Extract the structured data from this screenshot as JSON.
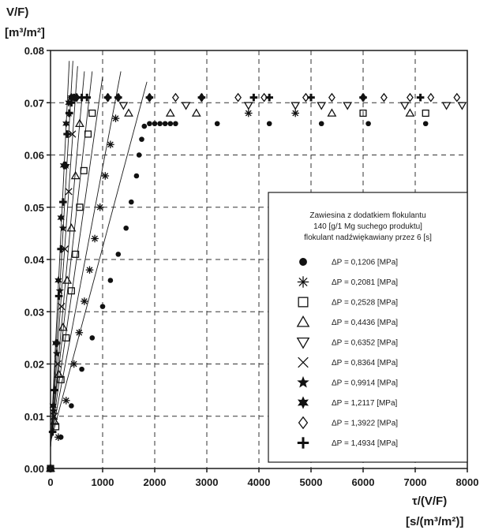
{
  "chart_data": {
    "type": "scatter",
    "ylabel_lines": [
      "V/F)",
      "[m³/m²]"
    ],
    "xlabel_lines": [
      "τ/(V/F)",
      "[s/(m³/m²)]"
    ],
    "xlim": [
      0,
      8000
    ],
    "ylim": [
      0,
      0.08
    ],
    "x_ticks": [
      0,
      1000,
      2000,
      3000,
      4000,
      5000,
      6000,
      7000,
      8000
    ],
    "y_ticks": [
      0.0,
      0.01,
      0.02,
      0.03,
      0.04,
      0.05,
      0.06,
      0.07,
      0.08
    ],
    "x_tick_labels": [
      "0",
      "1000",
      "2000",
      "3000",
      "4000",
      "5000",
      "6000",
      "7000",
      "8000"
    ],
    "y_tick_labels": [
      "0.00",
      "0.01",
      "0.02",
      "0.03",
      "0.04",
      "0.05",
      "0.06",
      "0.07",
      "0.08"
    ],
    "grid": true,
    "legend_position": "right",
    "legend_title_lines": [
      "Zawiesina z dodatkiem flokulantu",
      "140 [g/1 Mg suchego produktu]",
      "flokulant nadźwiękawiany przez 6 [s]"
    ],
    "series": [
      {
        "name": "ΔP = 0,1206 [MPa]",
        "marker": "circle",
        "x": [
          0,
          200,
          400,
          600,
          800,
          1000,
          1150,
          1300,
          1450,
          1550,
          1650,
          1700,
          1750,
          1800,
          1900,
          2000,
          2100,
          2200,
          2300,
          2400,
          3200,
          4200,
          5200,
          6100,
          7200
        ],
        "y": [
          0,
          0.006,
          0.012,
          0.019,
          0.025,
          0.031,
          0.036,
          0.041,
          0.046,
          0.051,
          0.056,
          0.06,
          0.063,
          0.0655,
          0.066,
          0.066,
          0.066,
          0.066,
          0.066,
          0.066,
          0.066,
          0.066,
          0.066,
          0.066,
          0.066
        ]
      },
      {
        "name": "ΔP = 0,2081 [MPa]",
        "marker": "asterisk",
        "x": [
          0,
          150,
          300,
          450,
          550,
          650,
          750,
          850,
          950,
          1050,
          1150,
          1250,
          3800,
          4700
        ],
        "y": [
          0,
          0.006,
          0.013,
          0.02,
          0.026,
          0.032,
          0.038,
          0.044,
          0.05,
          0.056,
          0.062,
          0.067,
          0.068,
          0.068
        ]
      },
      {
        "name": "ΔP = 0,2528 [MPa]",
        "marker": "square",
        "x": [
          0,
          100,
          200,
          300,
          400,
          480,
          560,
          640,
          720,
          800,
          6000,
          7200
        ],
        "y": [
          0,
          0.008,
          0.017,
          0.025,
          0.034,
          0.041,
          0.05,
          0.057,
          0.064,
          0.068,
          0.068,
          0.068
        ]
      },
      {
        "name": "ΔP = 0,4436 [MPa]",
        "marker": "triangle-up",
        "x": [
          0,
          80,
          160,
          240,
          320,
          400,
          480,
          560,
          1500,
          2300,
          2800,
          5400,
          6900
        ],
        "y": [
          0,
          0.009,
          0.018,
          0.027,
          0.036,
          0.046,
          0.056,
          0.066,
          0.068,
          0.068,
          0.068,
          0.068,
          0.068
        ]
      },
      {
        "name": "ΔP = 0,6352 [MPa]",
        "marker": "triangle-down",
        "x": [
          1400,
          2600,
          3800,
          4700,
          5200,
          5700,
          6800,
          7600,
          7900
        ],
        "y": [
          0.0695,
          0.0695,
          0.0695,
          0.0695,
          0.0695,
          0.0695,
          0.0695,
          0.0695,
          0.0695
        ]
      },
      {
        "name": "ΔP = 0,8364 [MPa]",
        "marker": "x",
        "x": [
          0,
          70,
          140,
          210,
          280,
          350,
          420
        ],
        "y": [
          0,
          0.01,
          0.02,
          0.031,
          0.042,
          0.053,
          0.064
        ]
      },
      {
        "name": "ΔP = 0,9914 [MPa]",
        "marker": "star",
        "x": [
          0,
          60,
          120,
          180,
          240,
          300,
          360
        ],
        "y": [
          0,
          0.011,
          0.022,
          0.034,
          0.046,
          0.058,
          0.068
        ]
      },
      {
        "name": "ΔP = 1,2117 [MPa]",
        "marker": "star6",
        "x": [
          0,
          50,
          100,
          150,
          200,
          250,
          300,
          350,
          400
        ],
        "y": [
          0,
          0.012,
          0.024,
          0.036,
          0.048,
          0.058,
          0.066,
          0.07,
          0.071
        ]
      },
      {
        "name": "ΔP = 1,3922 [MPa]",
        "marker": "diamond",
        "x": [
          400,
          500,
          1100,
          1300,
          1900,
          2400,
          2900,
          3600,
          4100,
          4900,
          5400,
          6000,
          6400,
          6900,
          7300,
          7800
        ],
        "y": [
          0.071,
          0.071,
          0.071,
          0.071,
          0.071,
          0.071,
          0.071,
          0.071,
          0.071,
          0.071,
          0.071,
          0.071,
          0.071,
          0.071,
          0.071,
          0.071
        ]
      },
      {
        "name": "ΔP = 1,4934 [MPa]",
        "marker": "plus",
        "x": [
          0,
          40,
          80,
          120,
          160,
          200,
          240,
          280,
          320,
          360,
          400,
          450,
          500,
          600,
          700,
          1100,
          1300,
          1900,
          2900,
          3900,
          4200,
          5000,
          6000,
          7100
        ],
        "y": [
          0,
          0.007,
          0.015,
          0.024,
          0.033,
          0.042,
          0.051,
          0.058,
          0.064,
          0.068,
          0.07,
          0.071,
          0.071,
          0.071,
          0.071,
          0.071,
          0.071,
          0.071,
          0.071,
          0.071,
          0.071,
          0.071,
          0.071,
          0.071
        ]
      }
    ],
    "fit_lines": [
      {
        "x": [
          0,
          1850
        ],
        "y": [
          0.005,
          0.074
        ]
      },
      {
        "x": [
          0,
          1350
        ],
        "y": [
          0.005,
          0.076
        ]
      },
      {
        "x": [
          0,
          1000
        ],
        "y": [
          0.005,
          0.075
        ]
      },
      {
        "x": [
          0,
          800
        ],
        "y": [
          0.005,
          0.076
        ]
      },
      {
        "x": [
          0,
          650
        ],
        "y": [
          0.004,
          0.076
        ]
      },
      {
        "x": [
          0,
          520
        ],
        "y": [
          0.004,
          0.077
        ]
      },
      {
        "x": [
          0,
          430
        ],
        "y": [
          0.004,
          0.078
        ]
      },
      {
        "x": [
          0,
          360
        ],
        "y": [
          0.004,
          0.078
        ]
      }
    ]
  }
}
